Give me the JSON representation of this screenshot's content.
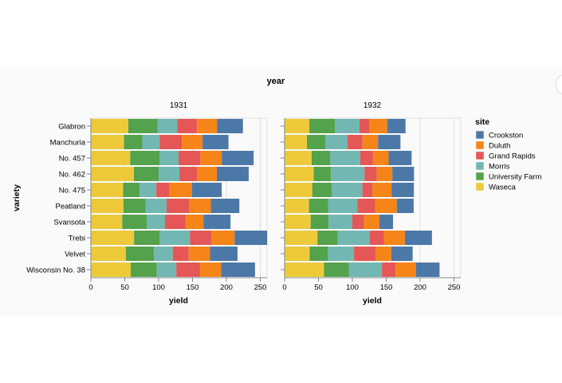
{
  "chart_data": {
    "type": "bar",
    "orientation": "horizontal",
    "stacked": true,
    "title": "year",
    "facet_titles": [
      "1931",
      "1932"
    ],
    "ylabel": "variety",
    "xlabel": "yield",
    "xlim": [
      0,
      260
    ],
    "xticks": [
      0,
      50,
      100,
      150,
      200,
      250
    ],
    "grid": true,
    "legend": {
      "title": "site",
      "position": "right"
    },
    "categories": [
      "Glabron",
      "Manchuria",
      "No. 457",
      "No. 462",
      "No. 475",
      "Peatland",
      "Svansota",
      "Trebi",
      "Velvet",
      "Wisconsin No. 38"
    ],
    "series": [
      {
        "name": "Crookston",
        "color": "#4c78a8"
      },
      {
        "name": "Duluth",
        "color": "#f58518"
      },
      {
        "name": "Grand Rapids",
        "color": "#e45756"
      },
      {
        "name": "Morris",
        "color": "#72b7b2"
      },
      {
        "name": "University Farm",
        "color": "#54a24b"
      },
      {
        "name": "Waseca",
        "color": "#eeca3b"
      }
    ],
    "stack_order": [
      "Waseca",
      "University Farm",
      "Morris",
      "Grand Rapids",
      "Duluth",
      "Crookston"
    ],
    "facets": [
      {
        "year": "1931",
        "values": {
          "Waseca": [
            55.2,
            48.9,
            58.1,
            63.5,
            47.5,
            48.1,
            46.3,
            63.8,
            51.6,
            58.8
          ],
          "University Farm": [
            43.1,
            27.0,
            43.1,
            36.6,
            24.6,
            32.6,
            36.1,
            37.4,
            41.6,
            38.5
          ],
          "Morris": [
            29.3,
            25.5,
            28.3,
            30.6,
            24.5,
            31.0,
            27.0,
            45.0,
            27.7,
            28.8
          ],
          "Grand Rapids": [
            29.0,
            32.8,
            32.1,
            26.2,
            19.2,
            33.0,
            30.0,
            31.4,
            23.5,
            35.0
          ],
          "Duluth": [
            29.7,
            30.6,
            31.6,
            29.0,
            33.3,
            32.4,
            26.7,
            34.5,
            31.5,
            31.1
          ],
          "Crookston": [
            38.1,
            38.3,
            47.0,
            47.0,
            44.0,
            42.0,
            40.0,
            48.0,
            40.5,
            50.0
          ]
        }
      },
      {
        "year": "1932",
        "values": {
          "Waseca": [
            36.5,
            33.0,
            40.0,
            43.0,
            40.8,
            36.0,
            38.5,
            48.5,
            37.0,
            58.2
          ],
          "University Farm": [
            38.0,
            27.0,
            27.5,
            25.5,
            29.0,
            28.5,
            26.5,
            30.0,
            27.0,
            36.5
          ],
          "Morris": [
            36.0,
            33.0,
            44.0,
            49.5,
            45.0,
            43.0,
            35.0,
            47.0,
            38.5,
            49.0
          ],
          "Grand Rapids": [
            15.0,
            22.0,
            19.0,
            18.0,
            15.0,
            26.0,
            17.0,
            21.0,
            32.0,
            20.0
          ],
          "Duluth": [
            26.0,
            23.0,
            23.0,
            23.0,
            28.0,
            32.0,
            23.0,
            31.0,
            23.0,
            30.0
          ],
          "Crookston": [
            27.0,
            33.0,
            34.0,
            32.0,
            33.0,
            25.0,
            20.0,
            40.0,
            31.5,
            35.0
          ]
        }
      }
    ]
  }
}
